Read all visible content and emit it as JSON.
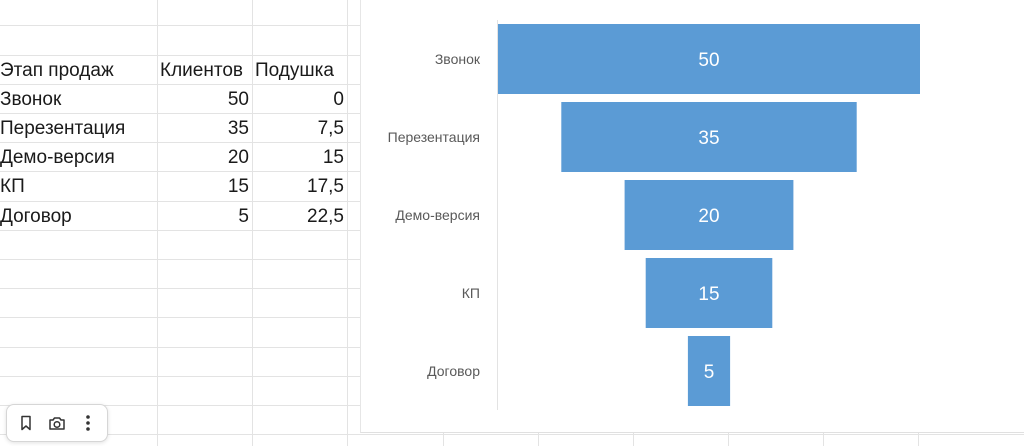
{
  "table": {
    "headers": [
      "Этап продаж",
      "Клиентов",
      "Подушка"
    ],
    "rows": [
      [
        "Звонок",
        "50",
        "0"
      ],
      [
        "Перезентация",
        "35",
        "7,5"
      ],
      [
        "Демо-версия",
        "20",
        "15"
      ],
      [
        "КП",
        "15",
        "17,5"
      ],
      [
        "Договор",
        "5",
        "22,5"
      ]
    ]
  },
  "chart_data": {
    "type": "bar",
    "orientation": "horizontal",
    "stacked_funnel": true,
    "categories": [
      "Звонок",
      "Перезентация",
      "Демо-версия",
      "КП",
      "Договор"
    ],
    "series": [
      {
        "name": "Подушка",
        "values": [
          0,
          7.5,
          15,
          17.5,
          22.5
        ],
        "color": "none"
      },
      {
        "name": "Клиентов",
        "values": [
          50,
          35,
          20,
          15,
          5
        ],
        "color": "#5b9bd5"
      }
    ],
    "data_labels": [
      "50",
      "35",
      "20",
      "15",
      "5"
    ],
    "xlim": [
      0,
      50
    ],
    "title": "",
    "xlabel": "",
    "ylabel": "",
    "legend": "none",
    "grid": false
  },
  "toolbar": {
    "icons": [
      "bookmark-icon",
      "camera-icon",
      "more-vertical-icon"
    ]
  },
  "colors": {
    "bar": "#5b9bd5",
    "gridline": "#e3e3e3",
    "label": "#595959",
    "data_label": "#ffffff"
  }
}
